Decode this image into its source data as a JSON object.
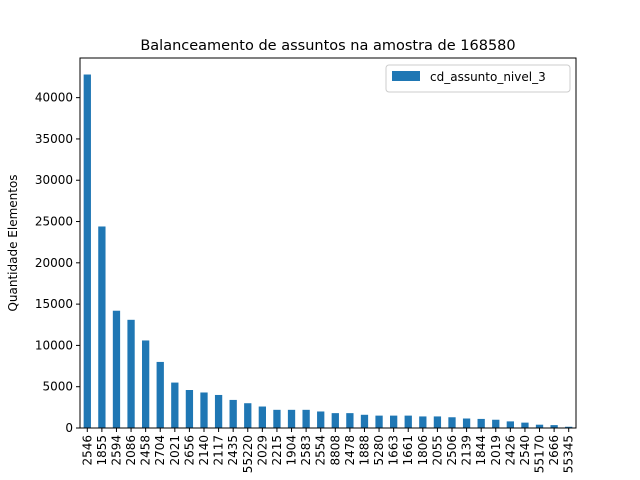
{
  "chart_data": {
    "type": "bar",
    "title": "Balanceamento de assuntos na amostra de 168580",
    "xlabel": "",
    "ylabel": "Quantidade Elementos",
    "ylim": [
      0,
      44800
    ],
    "yticks": [
      0,
      5000,
      10000,
      15000,
      20000,
      25000,
      30000,
      35000,
      40000
    ],
    "grid": false,
    "legend_position": "top-right",
    "categories": [
      "2546",
      "1855",
      "2594",
      "2086",
      "2458",
      "2704",
      "2021",
      "2656",
      "2140",
      "2117",
      "2435",
      "55220",
      "2029",
      "2215",
      "1904",
      "2583",
      "2554",
      "8808",
      "2478",
      "1888",
      "5280",
      "1663",
      "1661",
      "1806",
      "2055",
      "2506",
      "2139",
      "1844",
      "2019",
      "2426",
      "2540",
      "55170",
      "2666",
      "55345"
    ],
    "series": [
      {
        "name": "cd_assunto_nivel_3",
        "color": "#1f77b4",
        "values": [
          42800,
          24400,
          14200,
          13100,
          10600,
          8000,
          5500,
          4600,
          4300,
          4000,
          3400,
          3000,
          2600,
          2200,
          2200,
          2200,
          2000,
          1800,
          1800,
          1600,
          1500,
          1500,
          1500,
          1400,
          1400,
          1300,
          1150,
          1100,
          1000,
          800,
          650,
          400,
          350,
          150
        ]
      }
    ]
  }
}
